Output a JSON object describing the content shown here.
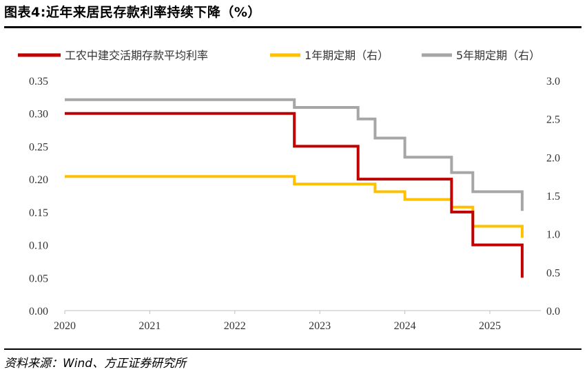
{
  "title": "图表4:近年来居民存款利率持续下降（%）",
  "source": "资料来源：Wind、方正证券研究所",
  "chart_data": {
    "type": "line",
    "step": true,
    "grid": false,
    "legend_position": "top",
    "x_axis": {
      "ticks": [
        2020,
        2021,
        2022,
        2023,
        2024,
        2025
      ],
      "range": [
        2020.0,
        2025.6
      ]
    },
    "y_left": {
      "ticks": [
        "0.00",
        "0.05",
        "0.10",
        "0.15",
        "0.20",
        "0.25",
        "0.30",
        "0.35"
      ],
      "range": [
        0,
        0.35
      ]
    },
    "y_right": {
      "ticks": [
        "0.0",
        "0.5",
        "1.0",
        "1.5",
        "2.0",
        "2.5",
        "3.0"
      ],
      "range": [
        0,
        3.0
      ]
    },
    "series": [
      {
        "name": "工农中建交活期存款平均利率",
        "axis": "left",
        "color": "#c00000",
        "x": [
          2020.0,
          2022.7,
          2022.7,
          2023.45,
          2023.45,
          2024.55,
          2024.55,
          2024.8,
          2024.8,
          2025.38,
          2025.38
        ],
        "y": [
          0.3,
          0.3,
          0.25,
          0.25,
          0.2,
          0.2,
          0.15,
          0.15,
          0.1,
          0.1,
          0.05
        ]
      },
      {
        "name": "1年期定期（右）",
        "axis": "right",
        "color": "#ffc000",
        "x": [
          2020.0,
          2022.7,
          2022.7,
          2023.65,
          2023.65,
          2024.0,
          2024.0,
          2024.55,
          2024.55,
          2024.8,
          2024.8,
          2025.38,
          2025.38
        ],
        "y": [
          1.75,
          1.75,
          1.65,
          1.65,
          1.55,
          1.55,
          1.45,
          1.45,
          1.35,
          1.35,
          1.1,
          1.1,
          0.95
        ]
      },
      {
        "name": "5年期定期（右）",
        "axis": "right",
        "color": "#a6a6a6",
        "x": [
          2020.0,
          2022.7,
          2022.7,
          2023.45,
          2023.45,
          2023.65,
          2023.65,
          2024.0,
          2024.0,
          2024.55,
          2024.55,
          2024.8,
          2024.8,
          2025.38,
          2025.38
        ],
        "y": [
          2.75,
          2.75,
          2.65,
          2.65,
          2.5,
          2.5,
          2.25,
          2.25,
          2.0,
          2.0,
          1.8,
          1.8,
          1.55,
          1.55,
          1.3
        ]
      }
    ]
  }
}
